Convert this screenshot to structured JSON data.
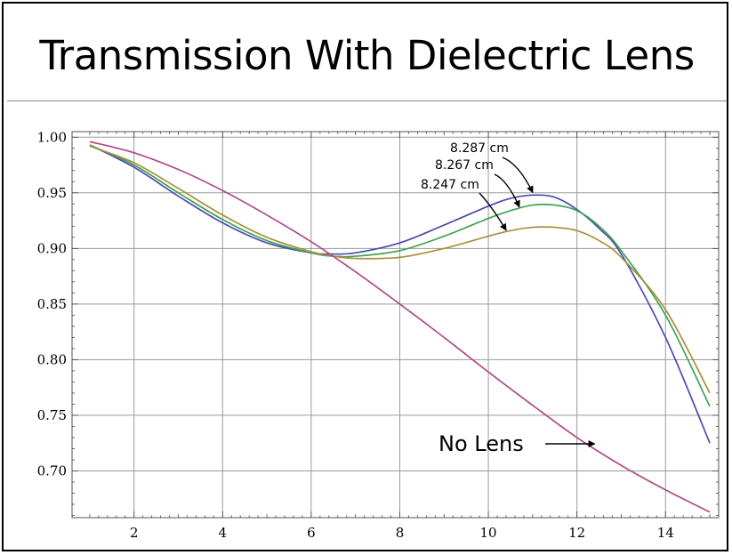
{
  "slide": {
    "title": "Transmission With Dielectric Lens"
  },
  "chart_data": {
    "type": "line",
    "title": "Transmission With Dielectric Lens",
    "xlabel": "",
    "ylabel": "",
    "xlim": [
      0.6,
      15.2
    ],
    "ylim": [
      0.658,
      1.005
    ],
    "xticks": [
      2,
      4,
      6,
      8,
      10,
      12,
      14
    ],
    "yticks": [
      0.7,
      0.75,
      0.8,
      0.85,
      0.9,
      0.95,
      1.0
    ],
    "ytick_labels": [
      "0.70",
      "0.75",
      "0.80",
      "0.85",
      "0.90",
      "0.95",
      "1.00"
    ],
    "grid": true,
    "series": [
      {
        "color": "#4b4bb0",
        "x": [
          1,
          2,
          3,
          4,
          5,
          6,
          6.5,
          7,
          8,
          9,
          10,
          10.5,
          11,
          11.5,
          12,
          12.5,
          13,
          14,
          15
        ],
        "y": [
          0.993,
          0.973,
          0.947,
          0.923,
          0.905,
          0.896,
          0.895,
          0.896,
          0.905,
          0.921,
          0.938,
          0.945,
          0.948,
          0.946,
          0.935,
          0.918,
          0.895,
          0.82,
          0.725
        ]
      },
      {
        "color": "#3fa155",
        "x": [
          1,
          2,
          3,
          4,
          5,
          6,
          6.5,
          7,
          8,
          9,
          10,
          10.5,
          11,
          11.5,
          12,
          12.5,
          13,
          14,
          15
        ],
        "y": [
          0.993,
          0.975,
          0.95,
          0.926,
          0.907,
          0.896,
          0.893,
          0.893,
          0.898,
          0.911,
          0.927,
          0.934,
          0.939,
          0.939,
          0.934,
          0.92,
          0.898,
          0.84,
          0.758
        ]
      },
      {
        "color": "#a88f3e",
        "x": [
          1,
          2,
          3,
          4,
          5,
          6,
          6.5,
          7,
          8,
          9,
          10,
          10.5,
          11,
          11.5,
          12,
          12.5,
          13,
          14,
          15
        ],
        "y": [
          0.992,
          0.977,
          0.954,
          0.93,
          0.91,
          0.897,
          0.893,
          0.891,
          0.892,
          0.9,
          0.911,
          0.916,
          0.919,
          0.919,
          0.916,
          0.907,
          0.892,
          0.845,
          0.77
        ]
      },
      {
        "color": "#b04a88",
        "x": [
          1,
          2,
          3,
          4,
          5,
          6,
          7,
          8,
          9,
          10,
          11,
          12,
          13,
          14,
          15
        ],
        "y": [
          0.996,
          0.986,
          0.971,
          0.952,
          0.93,
          0.906,
          0.879,
          0.85,
          0.82,
          0.789,
          0.759,
          0.73,
          0.705,
          0.683,
          0.663
        ]
      }
    ],
    "annotations": [
      {
        "text": "8.287 cm",
        "arrow_to": [
          11,
          0.948
        ]
      },
      {
        "text": "8.267 cm",
        "arrow_to": [
          10.7,
          0.935
        ]
      },
      {
        "text": "8.247 cm",
        "arrow_to": [
          10.4,
          0.914
        ]
      },
      {
        "text": "No Lens",
        "arrow_to": [
          12.4,
          0.736
        ]
      }
    ]
  }
}
